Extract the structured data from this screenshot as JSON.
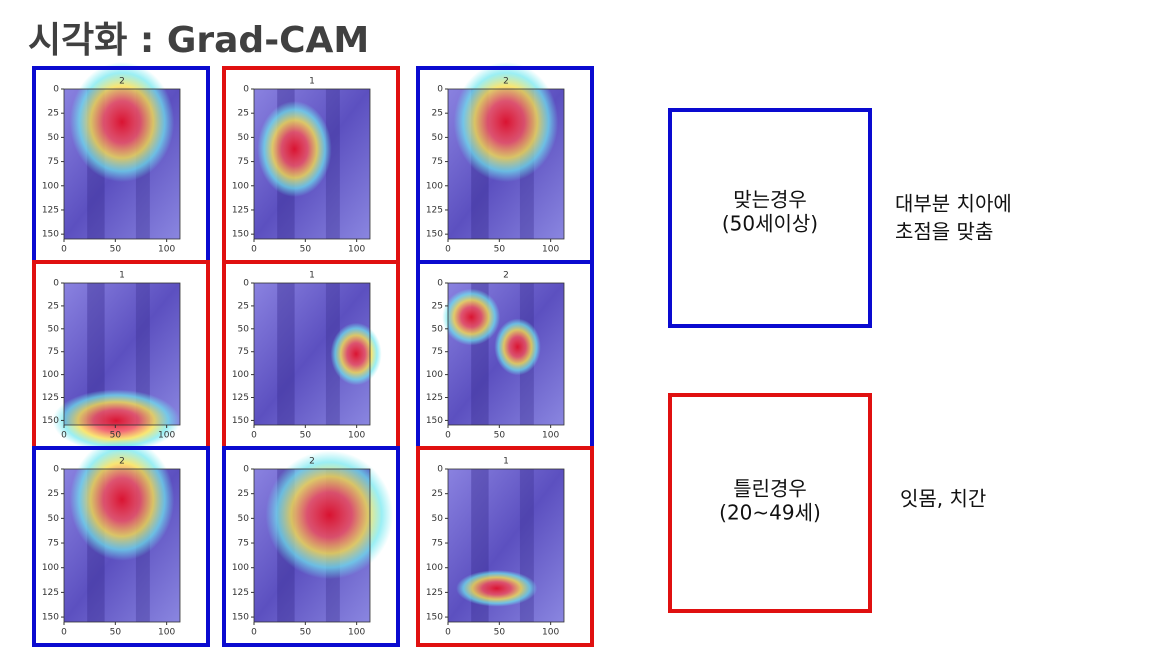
{
  "title": "시각화 : Grad-CAM",
  "panels": [
    {
      "label": "2",
      "correct": true
    },
    {
      "label": "1",
      "correct": false
    },
    {
      "label": "2",
      "correct": true
    },
    {
      "label": "1",
      "correct": false
    },
    {
      "label": "1",
      "correct": false
    },
    {
      "label": "2",
      "correct": true
    },
    {
      "label": "2",
      "correct": true
    },
    {
      "label": "2",
      "correct": true
    },
    {
      "label": "1",
      "correct": false
    }
  ],
  "axes": {
    "xlim": [
      0,
      113
    ],
    "ylim": [
      0,
      155
    ],
    "xticks": [
      0,
      50,
      100
    ],
    "yticks": [
      0,
      25,
      50,
      75,
      100,
      125,
      150
    ]
  },
  "legend": [
    {
      "color": "#0a0ad0",
      "lines": [
        "맞는경우",
        "(50세이상)"
      ],
      "note": [
        "대부분 치아에",
        "초점을 맞춤"
      ]
    },
    {
      "color": "#e01010",
      "lines": [
        "틀린경우",
        "(20~49세)"
      ],
      "note": [
        "잇몸, 치간"
      ]
    }
  ]
}
